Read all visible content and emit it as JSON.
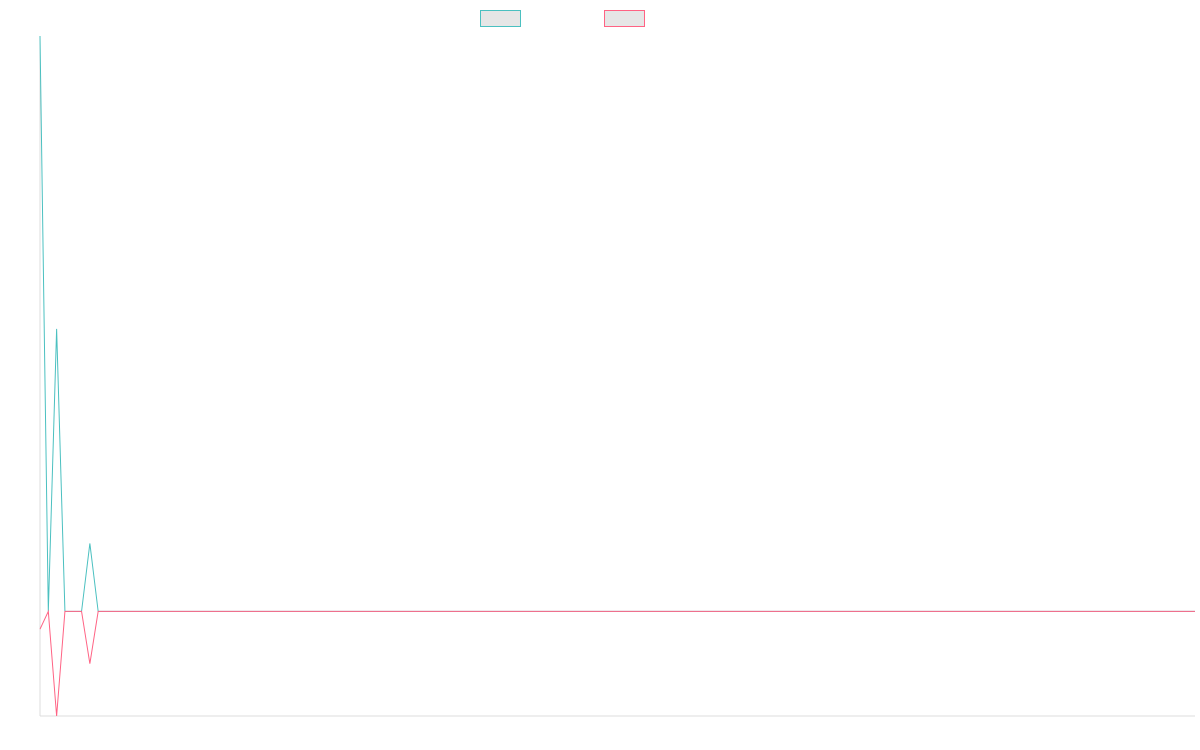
{
  "chart_data": {
    "type": "line",
    "title": "",
    "xlabel": "",
    "ylabel": "",
    "legend_position": "top-center",
    "grid": false,
    "x": [
      0,
      1,
      2,
      3,
      4,
      5,
      6,
      7,
      8,
      9,
      10,
      11,
      12,
      13,
      14,
      15,
      16,
      17,
      18,
      19,
      20,
      21,
      22,
      23,
      24,
      25,
      26,
      27,
      28,
      29,
      30,
      31,
      32,
      33,
      34,
      35,
      36,
      37,
      38,
      39,
      40,
      41,
      42,
      43,
      44,
      45,
      46,
      47,
      48,
      49,
      50,
      51,
      52,
      53,
      54,
      55,
      56,
      57,
      58,
      59,
      60,
      61,
      62,
      63,
      64,
      65,
      66,
      67,
      68,
      69,
      70,
      71,
      72,
      73,
      74,
      75,
      76,
      77,
      78,
      79,
      80,
      81,
      82,
      83,
      84,
      85,
      86,
      87,
      88,
      89,
      90,
      91,
      92,
      93,
      94,
      95,
      96,
      97,
      98,
      99,
      100,
      101,
      102,
      103,
      104,
      105,
      106,
      107,
      108,
      109,
      110,
      111,
      112,
      113,
      114,
      115,
      116,
      117,
      118,
      119,
      120,
      121,
      122,
      123,
      124,
      125,
      126,
      127,
      128,
      129,
      130,
      131,
      132,
      133,
      134,
      135,
      136,
      137,
      138,
      139
    ],
    "xlim": [
      0,
      139
    ],
    "ylim": [
      -1.0,
      5.5
    ],
    "series": [
      {
        "name": "",
        "color": "#4bc0c0",
        "fill": "#e6e6e6",
        "values": [
          5.5,
          0,
          2.7,
          0,
          0,
          0,
          0.65,
          0,
          0,
          0,
          0,
          0,
          0,
          0,
          0,
          0,
          0,
          0,
          0,
          0,
          0,
          0,
          0,
          0,
          0,
          0,
          0,
          0,
          0,
          0,
          0,
          0,
          0,
          0,
          0,
          0,
          0,
          0,
          0,
          0,
          0,
          0,
          0,
          0,
          0,
          0,
          0,
          0,
          0,
          0,
          0,
          0,
          0,
          0,
          0,
          0,
          0,
          0,
          0,
          0,
          0,
          0,
          0,
          0,
          0,
          0,
          0,
          0,
          0,
          0,
          0,
          0,
          0,
          0,
          0,
          0,
          0,
          0,
          0,
          0,
          0,
          0,
          0,
          0,
          0,
          0,
          0,
          0,
          0,
          0,
          0,
          0,
          0,
          0,
          0,
          0,
          0,
          0,
          0,
          0,
          0,
          0,
          0,
          0,
          0,
          0,
          0,
          0,
          0,
          0,
          0,
          0,
          0,
          0,
          0,
          0,
          0,
          0,
          0,
          0,
          0,
          0,
          0,
          0,
          0,
          0,
          0,
          0,
          0,
          0,
          0,
          0,
          0,
          0,
          0,
          0,
          0,
          0,
          0,
          0
        ]
      },
      {
        "name": "",
        "color": "#ff6384",
        "fill": "#e6e6e6",
        "values": [
          -0.17,
          0,
          -1.0,
          0,
          0,
          0,
          -0.5,
          0,
          0,
          0,
          0,
          0,
          0,
          0,
          0,
          0,
          0,
          0,
          0,
          0,
          0,
          0,
          0,
          0,
          0,
          0,
          0,
          0,
          0,
          0,
          0,
          0,
          0,
          0,
          0,
          0,
          0,
          0,
          0,
          0,
          0,
          0,
          0,
          0,
          0,
          0,
          0,
          0,
          0,
          0,
          0,
          0,
          0,
          0,
          0,
          0,
          0,
          0,
          0,
          0,
          0,
          0,
          0,
          0,
          0,
          0,
          0,
          0,
          0,
          0,
          0,
          0,
          0,
          0,
          0,
          0,
          0,
          0,
          0,
          0,
          0,
          0,
          0,
          0,
          0,
          0,
          0,
          0,
          0,
          0,
          0,
          0,
          0,
          0,
          0,
          0,
          0,
          0,
          0,
          0,
          0,
          0,
          0,
          0,
          0,
          0,
          0,
          0,
          0,
          0,
          0,
          0,
          0,
          0,
          0,
          0,
          0,
          0,
          0,
          0,
          0,
          0,
          0,
          0,
          0,
          0,
          0,
          0,
          0,
          0,
          0,
          0,
          0,
          0,
          0,
          0,
          0,
          0,
          0,
          0
        ]
      }
    ]
  }
}
